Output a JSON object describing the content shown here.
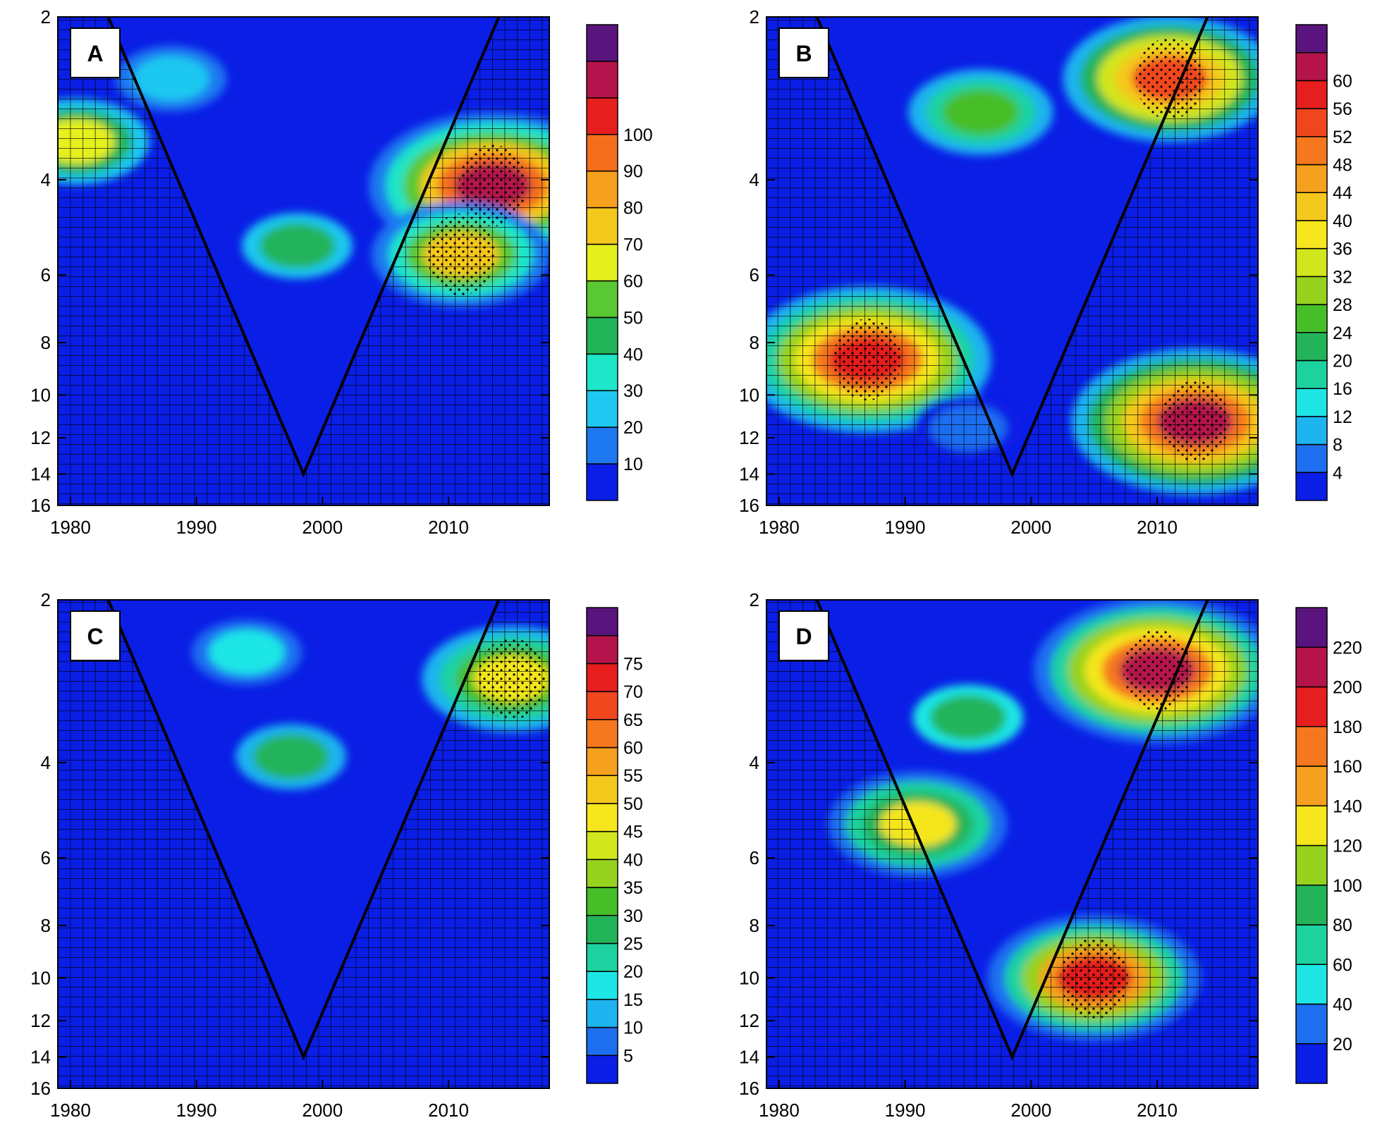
{
  "chart_data": [
    {
      "type": "heatmap",
      "panel_label": "A",
      "x_ticks": [
        "1980",
        "1990",
        "2000",
        "2010"
      ],
      "y_ticks": [
        "2",
        "4",
        "6",
        "8",
        "10",
        "12",
        "14",
        "16"
      ],
      "xlim": [
        1979,
        2018
      ],
      "ylim": [
        2,
        16
      ],
      "y_scale": "log2",
      "colorbar_labels": [
        "10",
        "20",
        "30",
        "40",
        "50",
        "60",
        "70",
        "80",
        "90",
        "100"
      ],
      "colorbar_colors": [
        "#0a1ee6",
        "#1e78f0",
        "#1ec8f0",
        "#1ee6c8",
        "#23b45a",
        "#5ac832",
        "#e6f01e",
        "#f5c81e",
        "#f5a01e",
        "#f56e1e",
        "#e61e1e",
        "#b4144b",
        "#5a147d"
      ],
      "cone_of_influence": true,
      "hatching": true,
      "features": [
        {
          "x": 2013.5,
          "y": 4.1,
          "value": 95,
          "significant": true
        },
        {
          "x": 2011,
          "y": 5.5,
          "value": 65,
          "significant": true
        },
        {
          "x": 1980.5,
          "y": 3.4,
          "value": 55
        },
        {
          "x": 1998,
          "y": 5.3,
          "value": 40
        },
        {
          "x": 1988,
          "y": 2.6,
          "value": 25
        }
      ]
    },
    {
      "type": "heatmap",
      "panel_label": "B",
      "x_ticks": [
        "1980",
        "1990",
        "2000",
        "2010"
      ],
      "y_ticks": [
        "2",
        "4",
        "6",
        "8",
        "10",
        "12",
        "14",
        "16"
      ],
      "xlim": [
        1979,
        2018
      ],
      "ylim": [
        2,
        16
      ],
      "y_scale": "log2",
      "colorbar_labels": [
        "4",
        "8",
        "12",
        "16",
        "20",
        "24",
        "28",
        "32",
        "36",
        "40",
        "44",
        "48",
        "52",
        "56",
        "60"
      ],
      "colorbar_colors": [
        "#0a1ee6",
        "#1e6ef0",
        "#1eb4f0",
        "#1ee6e6",
        "#1ed2a0",
        "#23b45a",
        "#46be28",
        "#96d21e",
        "#d2e61e",
        "#f5e61e",
        "#f5c81e",
        "#f5a01e",
        "#f5781e",
        "#f0461e",
        "#e61e1e",
        "#b4144b",
        "#5a147d"
      ],
      "cone_of_influence": true,
      "hatching": true,
      "features": [
        {
          "x": 2011,
          "y": 2.6,
          "value": 52,
          "significant": true
        },
        {
          "x": 1987,
          "y": 8.6,
          "value": 58,
          "significant": true
        },
        {
          "x": 2013,
          "y": 11.2,
          "value": 60,
          "significant": true
        },
        {
          "x": 1996,
          "y": 3.0,
          "value": 26
        },
        {
          "x": 1995,
          "y": 11.5,
          "value": 6
        }
      ]
    },
    {
      "type": "heatmap",
      "panel_label": "C",
      "x_ticks": [
        "1980",
        "1990",
        "2000",
        "2010"
      ],
      "y_ticks": [
        "2",
        "4",
        "6",
        "8",
        "10",
        "12",
        "14",
        "16"
      ],
      "xlim": [
        1979,
        2018
      ],
      "ylim": [
        2,
        16
      ],
      "y_scale": "log2",
      "colorbar_labels": [
        "5",
        "10",
        "15",
        "20",
        "25",
        "30",
        "35",
        "40",
        "45",
        "50",
        "55",
        "60",
        "65",
        "70",
        "75"
      ],
      "colorbar_colors": [
        "#0a1ee6",
        "#1e6ef0",
        "#1eb4f0",
        "#1ee6e6",
        "#1ed2a0",
        "#23b45a",
        "#46be28",
        "#96d21e",
        "#d2e61e",
        "#f5e61e",
        "#f5c81e",
        "#f5a01e",
        "#f5781e",
        "#f0461e",
        "#e61e1e",
        "#b4144b",
        "#5a147d"
      ],
      "cone_of_influence": true,
      "hatching": true,
      "features": [
        {
          "x": 2015,
          "y": 2.8,
          "value": 45,
          "significant": true
        },
        {
          "x": 1997.5,
          "y": 3.9,
          "value": 25
        },
        {
          "x": 1994,
          "y": 2.5,
          "value": 18
        }
      ]
    },
    {
      "type": "heatmap",
      "panel_label": "D",
      "x_ticks": [
        "1980",
        "1990",
        "2000",
        "2010"
      ],
      "y_ticks": [
        "2",
        "4",
        "6",
        "8",
        "10",
        "12",
        "14",
        "16"
      ],
      "xlim": [
        1979,
        2018
      ],
      "ylim": [
        2,
        16
      ],
      "y_scale": "log2",
      "colorbar_labels": [
        "20",
        "40",
        "60",
        "80",
        "100",
        "120",
        "140",
        "160",
        "180",
        "200",
        "220"
      ],
      "colorbar_colors": [
        "#0a1ee6",
        "#1e6ef0",
        "#1ee6e6",
        "#1ed2a0",
        "#23b45a",
        "#96d21e",
        "#f5e61e",
        "#f5a01e",
        "#f5781e",
        "#e61e1e",
        "#b4144b",
        "#5a147d"
      ],
      "cone_of_influence": true,
      "hatching": true,
      "features": [
        {
          "x": 2010,
          "y": 2.7,
          "value": 210,
          "significant": true
        },
        {
          "x": 2005,
          "y": 10.0,
          "value": 190,
          "significant": true
        },
        {
          "x": 1991,
          "y": 5.2,
          "value": 130
        },
        {
          "x": 1995,
          "y": 3.3,
          "value": 90
        },
        {
          "x": 1984,
          "y": 11.5,
          "value": 20
        }
      ]
    }
  ]
}
